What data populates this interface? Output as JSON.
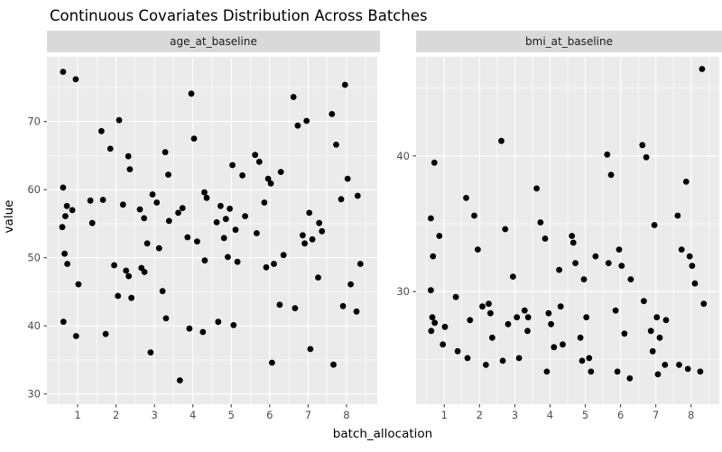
{
  "title": "Continuous Covariates Distribution Across Batches",
  "colors": {
    "panel_bg": "#EBEBEB",
    "strip_bg": "#D9D9D9",
    "grid": "#FFFFFF",
    "point": "#000000",
    "tick_text": "#4D4D4D",
    "tick_mark": "#333333"
  },
  "chart_data": {
    "type": "scatter",
    "title": "Continuous Covariates Distribution Across Batches",
    "xlabel": "batch_allocation",
    "ylabel": "value",
    "legend": "none",
    "grid": "on",
    "facets": [
      {
        "label": "age_at_baseline",
        "xlim": [
          0.2,
          8.8
        ],
        "ylim": [
          28.5,
          79.5
        ],
        "x_ticks": [
          1,
          2,
          3,
          4,
          5,
          6,
          7,
          8
        ],
        "x_minor": [
          0.5,
          1.5,
          2.5,
          3.5,
          4.5,
          5.5,
          6.5,
          7.5,
          8.5
        ],
        "y_ticks": [
          30,
          40,
          50,
          60,
          70
        ],
        "y_minor": [
          35,
          45,
          55,
          65,
          75
        ],
        "points": [
          [
            0.62,
            77.3
          ],
          [
            0.95,
            76.2
          ],
          [
            0.62,
            60.3
          ],
          [
            0.72,
            57.6
          ],
          [
            0.86,
            57.0
          ],
          [
            0.68,
            56.1
          ],
          [
            0.6,
            54.5
          ],
          [
            0.66,
            50.6
          ],
          [
            0.73,
            49.1
          ],
          [
            1.02,
            46.1
          ],
          [
            0.63,
            40.6
          ],
          [
            0.96,
            38.5
          ],
          [
            1.33,
            58.4
          ],
          [
            1.38,
            55.1
          ],
          [
            1.62,
            68.6
          ],
          [
            2.08,
            70.2
          ],
          [
            1.85,
            66.0
          ],
          [
            2.32,
            64.9
          ],
          [
            2.36,
            63.0
          ],
          [
            1.66,
            58.5
          ],
          [
            2.18,
            57.8
          ],
          [
            1.95,
            48.9
          ],
          [
            2.26,
            48.1
          ],
          [
            2.33,
            47.3
          ],
          [
            1.73,
            38.8
          ],
          [
            2.05,
            44.4
          ],
          [
            2.4,
            44.1
          ],
          [
            2.62,
            57.1
          ],
          [
            2.73,
            55.8
          ],
          [
            2.95,
            59.3
          ],
          [
            3.06,
            58.1
          ],
          [
            3.28,
            65.5
          ],
          [
            3.36,
            62.2
          ],
          [
            2.81,
            52.1
          ],
          [
            3.12,
            51.4
          ],
          [
            2.66,
            48.5
          ],
          [
            2.74,
            47.9
          ],
          [
            3.21,
            45.1
          ],
          [
            3.38,
            55.4
          ],
          [
            2.9,
            36.1
          ],
          [
            3.3,
            41.1
          ],
          [
            3.62,
            56.6
          ],
          [
            3.73,
            57.3
          ],
          [
            3.96,
            74.1
          ],
          [
            4.03,
            67.5
          ],
          [
            4.3,
            59.6
          ],
          [
            4.36,
            58.8
          ],
          [
            3.86,
            53.0
          ],
          [
            4.11,
            52.4
          ],
          [
            3.91,
            39.6
          ],
          [
            4.26,
            39.1
          ],
          [
            3.66,
            32.0
          ],
          [
            4.31,
            49.6
          ],
          [
            4.62,
            55.2
          ],
          [
            4.72,
            57.6
          ],
          [
            4.96,
            57.2
          ],
          [
            5.03,
            63.6
          ],
          [
            5.29,
            62.1
          ],
          [
            4.86,
            55.7
          ],
          [
            5.11,
            54.1
          ],
          [
            4.91,
            50.1
          ],
          [
            5.16,
            49.4
          ],
          [
            4.66,
            40.6
          ],
          [
            5.06,
            40.1
          ],
          [
            5.36,
            56.1
          ],
          [
            4.81,
            52.9
          ],
          [
            5.62,
            65.1
          ],
          [
            5.73,
            64.1
          ],
          [
            5.96,
            61.6
          ],
          [
            6.03,
            60.9
          ],
          [
            6.29,
            62.6
          ],
          [
            5.86,
            58.1
          ],
          [
            6.11,
            49.1
          ],
          [
            5.91,
            48.6
          ],
          [
            6.26,
            43.1
          ],
          [
            5.66,
            53.6
          ],
          [
            6.36,
            50.4
          ],
          [
            6.06,
            34.6
          ],
          [
            6.62,
            73.6
          ],
          [
            6.73,
            69.4
          ],
          [
            6.96,
            70.1
          ],
          [
            7.03,
            56.6
          ],
          [
            7.29,
            55.1
          ],
          [
            6.86,
            53.3
          ],
          [
            7.11,
            52.7
          ],
          [
            6.91,
            52.1
          ],
          [
            7.26,
            47.1
          ],
          [
            6.66,
            42.6
          ],
          [
            7.06,
            36.6
          ],
          [
            7.36,
            53.9
          ],
          [
            7.62,
            71.1
          ],
          [
            7.73,
            66.6
          ],
          [
            7.96,
            75.4
          ],
          [
            8.03,
            61.6
          ],
          [
            8.29,
            59.1
          ],
          [
            7.86,
            58.6
          ],
          [
            8.11,
            46.1
          ],
          [
            7.91,
            42.9
          ],
          [
            8.26,
            42.1
          ],
          [
            7.66,
            34.3
          ],
          [
            8.36,
            49.1
          ]
        ]
      },
      {
        "label": "bmi_at_baseline",
        "xlim": [
          0.2,
          8.8
        ],
        "ylim": [
          21.7,
          47.3
        ],
        "x_ticks": [
          1,
          2,
          3,
          4,
          5,
          6,
          7,
          8
        ],
        "x_minor": [
          0.5,
          1.5,
          2.5,
          3.5,
          4.5,
          5.5,
          6.5,
          7.5,
          8.5
        ],
        "y_ticks": [
          30,
          40
        ],
        "y_minor": [
          25,
          35,
          45
        ],
        "points": [
          [
            0.62,
            35.4
          ],
          [
            0.72,
            39.5
          ],
          [
            0.86,
            34.1
          ],
          [
            0.68,
            32.6
          ],
          [
            0.62,
            30.1
          ],
          [
            0.66,
            28.1
          ],
          [
            0.73,
            27.7
          ],
          [
            1.02,
            27.4
          ],
          [
            0.63,
            27.1
          ],
          [
            0.96,
            26.1
          ],
          [
            1.33,
            29.6
          ],
          [
            1.38,
            25.6
          ],
          [
            1.62,
            36.9
          ],
          [
            1.85,
            35.6
          ],
          [
            2.08,
            28.9
          ],
          [
            2.31,
            28.4
          ],
          [
            2.36,
            26.6
          ],
          [
            1.66,
            25.1
          ],
          [
            2.18,
            24.6
          ],
          [
            1.95,
            33.1
          ],
          [
            2.26,
            29.1
          ],
          [
            1.73,
            27.9
          ],
          [
            2.62,
            41.1
          ],
          [
            2.73,
            34.6
          ],
          [
            2.95,
            31.1
          ],
          [
            3.06,
            28.1
          ],
          [
            3.28,
            28.6
          ],
          [
            3.36,
            27.1
          ],
          [
            2.81,
            27.6
          ],
          [
            3.12,
            25.1
          ],
          [
            2.66,
            24.9
          ],
          [
            3.38,
            28.1
          ],
          [
            3.62,
            37.6
          ],
          [
            3.73,
            35.1
          ],
          [
            3.96,
            28.4
          ],
          [
            4.03,
            27.6
          ],
          [
            4.3,
            28.9
          ],
          [
            4.36,
            26.1
          ],
          [
            3.86,
            33.9
          ],
          [
            4.11,
            25.9
          ],
          [
            3.91,
            24.1
          ],
          [
            4.26,
            31.6
          ],
          [
            4.62,
            34.1
          ],
          [
            4.72,
            32.1
          ],
          [
            4.96,
            30.9
          ],
          [
            5.03,
            28.1
          ],
          [
            5.29,
            32.6
          ],
          [
            4.86,
            26.6
          ],
          [
            5.11,
            25.1
          ],
          [
            4.91,
            24.9
          ],
          [
            5.16,
            24.1
          ],
          [
            4.66,
            33.6
          ],
          [
            5.62,
            40.1
          ],
          [
            5.73,
            38.6
          ],
          [
            5.96,
            33.1
          ],
          [
            6.03,
            31.9
          ],
          [
            6.29,
            30.9
          ],
          [
            5.86,
            28.6
          ],
          [
            6.11,
            26.9
          ],
          [
            5.91,
            24.1
          ],
          [
            6.26,
            23.6
          ],
          [
            5.66,
            32.1
          ],
          [
            6.62,
            40.8
          ],
          [
            6.73,
            39.9
          ],
          [
            6.96,
            34.9
          ],
          [
            7.03,
            28.1
          ],
          [
            7.29,
            27.9
          ],
          [
            6.86,
            27.1
          ],
          [
            7.11,
            26.6
          ],
          [
            6.91,
            25.6
          ],
          [
            7.26,
            24.6
          ],
          [
            6.66,
            29.3
          ],
          [
            7.06,
            23.9
          ],
          [
            7.62,
            35.6
          ],
          [
            7.73,
            33.1
          ],
          [
            7.96,
            32.6
          ],
          [
            8.03,
            31.9
          ],
          [
            8.31,
            46.4
          ],
          [
            7.86,
            38.1
          ],
          [
            8.11,
            30.6
          ],
          [
            7.91,
            24.3
          ],
          [
            8.26,
            24.1
          ],
          [
            7.66,
            24.6
          ],
          [
            8.36,
            29.1
          ]
        ]
      }
    ]
  }
}
